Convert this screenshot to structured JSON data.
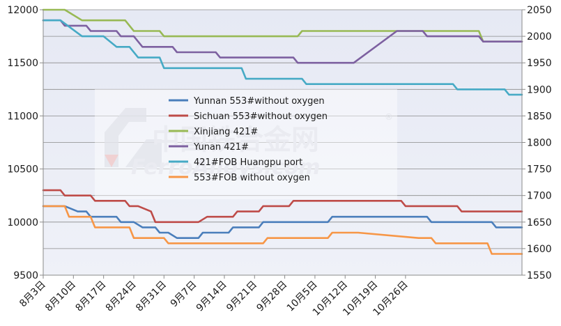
{
  "chart_data": {
    "type": "line",
    "y_left_range": [
      9500,
      12000
    ],
    "y_left_ticks": [
      "9500",
      "10000",
      "10500",
      "11000",
      "11500",
      "12000"
    ],
    "y_right_range": [
      1550,
      2050
    ],
    "y_right_ticks": [
      "1550",
      "1600",
      "1650",
      "1700",
      "1750",
      "1800",
      "1850",
      "1900",
      "1950",
      "2000",
      "2050"
    ],
    "x_tick_labels": [
      "8月3日",
      "8月10日",
      "8月17日",
      "8月24日",
      "8月31日",
      "9月7日",
      "9月14日",
      "9月21日",
      "9月28日",
      "10月5日",
      "10月12日",
      "10月19日",
      "10月26日"
    ],
    "grid": true,
    "legend_position": "center",
    "series": [
      {
        "name": "Yunnan 553#without oxygen",
        "axis": "left",
        "color": "#4a7ebb",
        "points": [
          [
            0,
            10150
          ],
          [
            5,
            10150
          ],
          [
            8,
            10100
          ],
          [
            10,
            10100
          ],
          [
            11,
            10050
          ],
          [
            17,
            10050
          ],
          [
            18,
            10000
          ],
          [
            21,
            10000
          ],
          [
            23,
            9950
          ],
          [
            26,
            9950
          ],
          [
            27,
            9900
          ],
          [
            29,
            9900
          ],
          [
            31,
            9850
          ],
          [
            36,
            9850
          ],
          [
            37,
            9900
          ],
          [
            43,
            9900
          ],
          [
            44,
            9950
          ],
          [
            50,
            9950
          ],
          [
            51,
            10000
          ],
          [
            66,
            10000
          ],
          [
            67,
            10050
          ],
          [
            89,
            10050
          ],
          [
            90,
            10000
          ],
          [
            104,
            10000
          ],
          [
            105,
            9950
          ],
          [
            111,
            9950
          ]
        ]
      },
      {
        "name": "Sichuan 553#without oxygen",
        "axis": "left",
        "color": "#be4b48",
        "points": [
          [
            0,
            10300
          ],
          [
            4,
            10300
          ],
          [
            5,
            10250
          ],
          [
            11,
            10250
          ],
          [
            12,
            10200
          ],
          [
            19,
            10200
          ],
          [
            20,
            10150
          ],
          [
            22,
            10150
          ],
          [
            25,
            10100
          ],
          [
            26,
            10000
          ],
          [
            36,
            10000
          ],
          [
            38,
            10050
          ],
          [
            44,
            10050
          ],
          [
            45,
            10100
          ],
          [
            50,
            10100
          ],
          [
            51,
            10150
          ],
          [
            57,
            10150
          ],
          [
            58,
            10200
          ],
          [
            83,
            10200
          ],
          [
            84,
            10150
          ],
          [
            96,
            10150
          ],
          [
            97,
            10100
          ],
          [
            111,
            10100
          ]
        ]
      },
      {
        "name": "Xinjiang 421#",
        "axis": "right",
        "color": "#98b954",
        "points": [
          [
            0,
            2050
          ],
          [
            5,
            2050
          ],
          [
            9,
            2030
          ],
          [
            19,
            2030
          ],
          [
            21,
            2010
          ],
          [
            27,
            2010
          ],
          [
            28,
            2000
          ],
          [
            59,
            2000
          ],
          [
            60,
            2010
          ],
          [
            101,
            2010
          ],
          [
            102,
            1990
          ],
          [
            111,
            1990
          ]
        ]
      },
      {
        "name": "Yunan 421#",
        "axis": "right",
        "color": "#7d60a0",
        "points": [
          [
            0,
            2030
          ],
          [
            4,
            2030
          ],
          [
            5,
            2020
          ],
          [
            10,
            2020
          ],
          [
            11,
            2010
          ],
          [
            17,
            2010
          ],
          [
            18,
            2000
          ],
          [
            21,
            2000
          ],
          [
            23,
            1980
          ],
          [
            30,
            1980
          ],
          [
            31,
            1970
          ],
          [
            40,
            1970
          ],
          [
            41,
            1960
          ],
          [
            58,
            1960
          ],
          [
            59,
            1950
          ],
          [
            72,
            1950
          ],
          [
            82,
            2010
          ],
          [
            88,
            2010
          ],
          [
            89,
            2000
          ],
          [
            101,
            2000
          ],
          [
            102,
            1990
          ],
          [
            111,
            1990
          ]
        ]
      },
      {
        "name": "421#FOB Huangpu port",
        "axis": "right",
        "color": "#46aac5",
        "points": [
          [
            0,
            2030
          ],
          [
            4,
            2030
          ],
          [
            9,
            2000
          ],
          [
            14,
            2000
          ],
          [
            17,
            1980
          ],
          [
            20,
            1980
          ],
          [
            22,
            1960
          ],
          [
            27,
            1960
          ],
          [
            28,
            1940
          ],
          [
            46,
            1940
          ],
          [
            47,
            1920
          ],
          [
            60,
            1920
          ],
          [
            61,
            1910
          ],
          [
            95,
            1910
          ],
          [
            96,
            1900
          ],
          [
            107,
            1900
          ],
          [
            108,
            1890
          ],
          [
            111,
            1890
          ]
        ]
      },
      {
        "name": "553#FOB without oxygen",
        "axis": "left",
        "color": "#f79646",
        "points": [
          [
            0,
            10150
          ],
          [
            5,
            10150
          ],
          [
            6,
            10050
          ],
          [
            11,
            10050
          ],
          [
            12,
            9950
          ],
          [
            20,
            9950
          ],
          [
            21,
            9850
          ],
          [
            28,
            9850
          ],
          [
            29,
            9800
          ],
          [
            51,
            9800
          ],
          [
            52,
            9850
          ],
          [
            66,
            9850
          ],
          [
            67,
            9900
          ],
          [
            73,
            9900
          ],
          [
            87,
            9850
          ],
          [
            90,
            9850
          ],
          [
            91,
            9800
          ],
          [
            103,
            9800
          ],
          [
            104,
            9700
          ],
          [
            111,
            9700
          ]
        ]
      }
    ]
  }
}
